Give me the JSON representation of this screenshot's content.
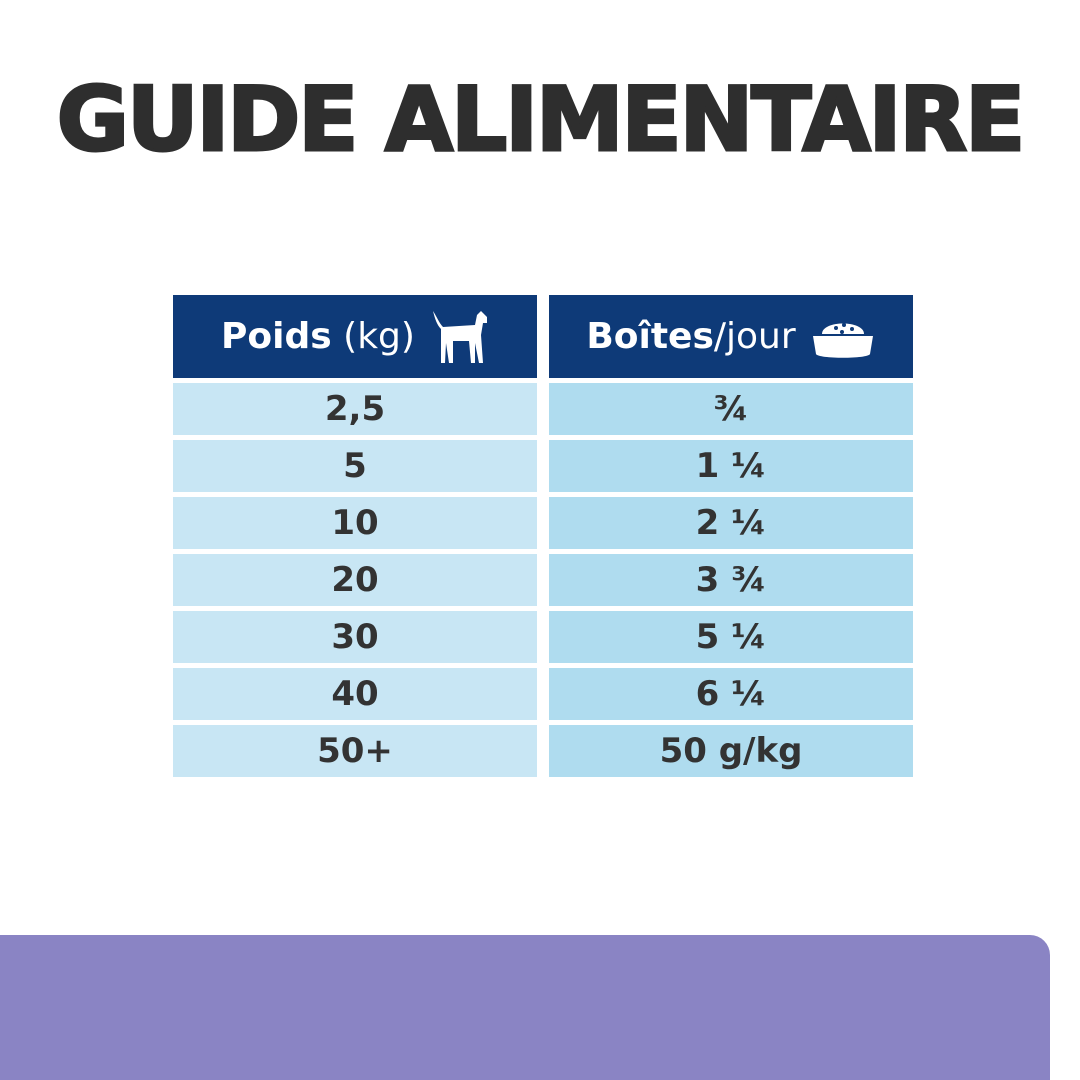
{
  "title": "GUIDE ALIMENTAIRE",
  "table": {
    "header": {
      "col1_bold": "Poids",
      "col1_light": "(kg)",
      "col1_icon": "dog-icon",
      "col2_bold": "Boîtes",
      "col2_light": "/jour",
      "col2_icon": "food-bowl-icon"
    },
    "rows": [
      {
        "weight": "2,5",
        "cans": "¾"
      },
      {
        "weight": "5",
        "cans": "1 ¼"
      },
      {
        "weight": "10",
        "cans": "2 ¼"
      },
      {
        "weight": "20",
        "cans": "3 ¾"
      },
      {
        "weight": "30",
        "cans": "5 ¼"
      },
      {
        "weight": "40",
        "cans": "6 ¼"
      },
      {
        "weight": "50+",
        "cans": "50 g/kg"
      }
    ]
  },
  "colors": {
    "header": "#0e3a78",
    "col1": "#c8e6f4",
    "col2": "#afdcef",
    "banner": "#8a84c4"
  }
}
